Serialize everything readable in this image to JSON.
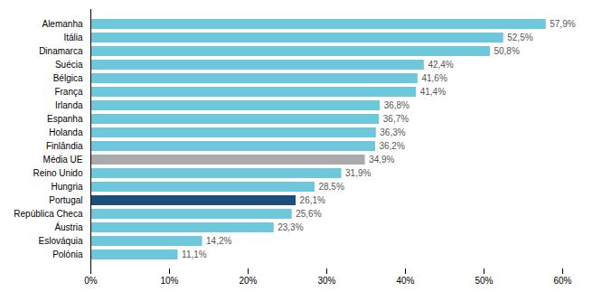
{
  "chart_data": {
    "type": "bar",
    "orientation": "horizontal",
    "categories": [
      "Alemanha",
      "Itália",
      "Dinamarca",
      "Suécia",
      "Bélgica",
      "França",
      "Irlanda",
      "Espanha",
      "Holanda",
      "Finlândia",
      "Média UE",
      "Reino Unido",
      "Hungria",
      "Portugal",
      "República Checa",
      "Áustria",
      "Eslováquia",
      "Polónia"
    ],
    "values": [
      57.9,
      52.5,
      50.8,
      42.4,
      41.6,
      41.4,
      36.8,
      36.7,
      36.3,
      36.2,
      34.9,
      31.9,
      28.5,
      26.1,
      25.6,
      23.3,
      14.2,
      11.1
    ],
    "value_labels": [
      "57,9%",
      "52,5%",
      "50,8%",
      "42,4%",
      "41,6%",
      "41,4%",
      "36,8%",
      "36,7%",
      "36,3%",
      "36,2%",
      "34,9%",
      "31,9%",
      "28,5%",
      "26,1%",
      "25,6%",
      "23,3%",
      "14,2%",
      "11,1%"
    ],
    "colors": [
      "#6dc8db",
      "#6dc8db",
      "#6dc8db",
      "#6dc8db",
      "#6dc8db",
      "#6dc8db",
      "#6dc8db",
      "#6dc8db",
      "#6dc8db",
      "#6dc8db",
      "#aaaaaa",
      "#6dc8db",
      "#6dc8db",
      "#1b4f7a",
      "#6dc8db",
      "#6dc8db",
      "#6dc8db",
      "#6dc8db"
    ],
    "xlim": [
      0,
      60
    ],
    "xticks": [
      {
        "value": 0,
        "label": "0%"
      },
      {
        "value": 10,
        "label": "10%"
      },
      {
        "value": 20,
        "label": "20%"
      },
      {
        "value": 30,
        "label": "30%"
      },
      {
        "value": 40,
        "label": "40%"
      },
      {
        "value": 50,
        "label": "50%"
      },
      {
        "value": 60,
        "label": "60%"
      }
    ],
    "data_labels": true,
    "grid": false
  }
}
